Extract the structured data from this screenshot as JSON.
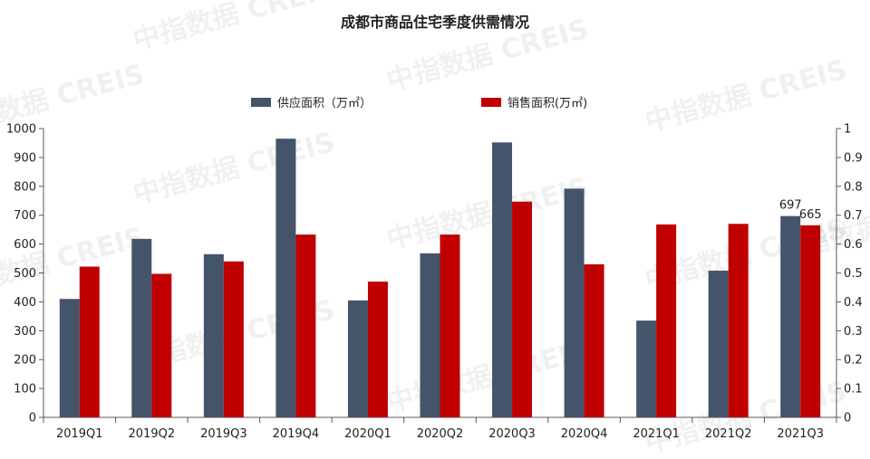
{
  "chart_data": {
    "type": "bar",
    "title": "成都市商品住宅季度供需情况",
    "categories": [
      "2019Q1",
      "2019Q2",
      "2019Q3",
      "2019Q4",
      "2020Q1",
      "2020Q2",
      "2020Q3",
      "2020Q4",
      "2021Q1",
      "2021Q2",
      "2021Q3"
    ],
    "series": [
      {
        "name": "供应面积（万㎡）",
        "color": "#44546a",
        "values": [
          410,
          618,
          565,
          965,
          405,
          568,
          952,
          792,
          335,
          508,
          697
        ]
      },
      {
        "name": "销售面积(万㎡)",
        "color": "#c00000",
        "values": [
          522,
          497,
          540,
          633,
          470,
          633,
          747,
          530,
          668,
          670,
          665
        ]
      }
    ],
    "data_labels": [
      {
        "category": "2021Q3",
        "series": 0,
        "text": "697"
      },
      {
        "category": "2021Q3",
        "series": 1,
        "text": "665"
      }
    ],
    "y_left": {
      "min": 0,
      "max": 1000,
      "ticks": [
        "0",
        "100",
        "200",
        "300",
        "400",
        "500",
        "600",
        "700",
        "800",
        "900",
        "1000"
      ]
    },
    "y_right": {
      "min": 0,
      "max": 1,
      "ticks": [
        "0",
        "0.1",
        "0.2",
        "0.3",
        "0.4",
        "0.5",
        "0.6",
        "0.7",
        "0.8",
        "0.9",
        "1"
      ]
    },
    "legend_position": "top",
    "grid": false
  },
  "watermark": "中指数据 CREIS"
}
